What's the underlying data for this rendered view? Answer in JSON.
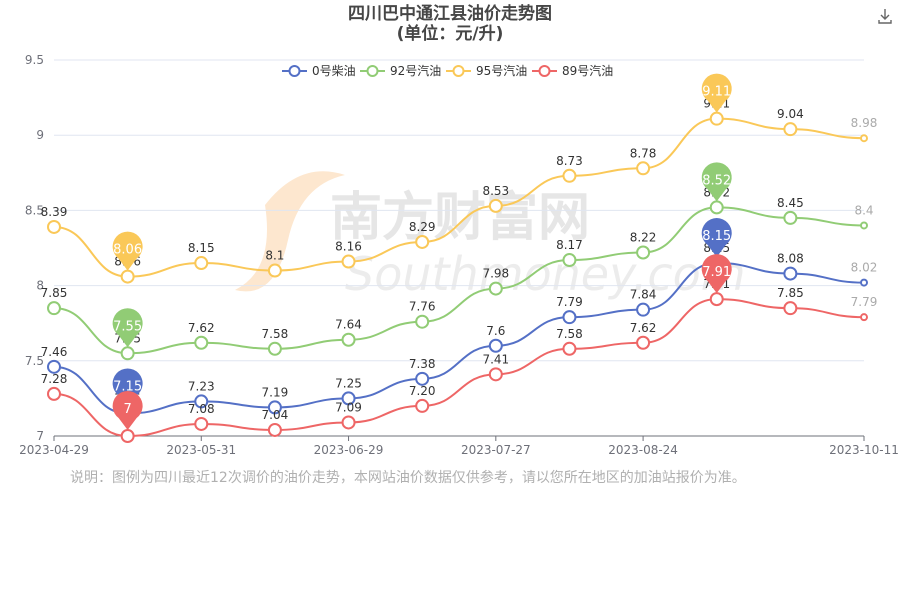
{
  "title_line1": "四川巴中通江县油价走势图",
  "title_line2": "(单位：元/升)",
  "note": "说明：图例为四川最近12次调价的油价走势，本网站油价数据仅供参考，请以您所在地区的加油站报价为准。",
  "watermark": {
    "cn": "南方财富网",
    "en": "Southmoney.com"
  },
  "download_icon": "download-icon",
  "chart_data": {
    "type": "line",
    "x": [
      "2023-04-29",
      "2023-05-16",
      "2023-05-31",
      "2023-06-15",
      "2023-06-29",
      "2023-07-14",
      "2023-07-27",
      "2023-08-10",
      "2023-08-24",
      "2023-09-07",
      "2023-09-21",
      "2023-10-11"
    ],
    "xticks": [
      "2023-04-29",
      "2023-05-31",
      "2023-06-29",
      "2023-07-27",
      "2023-08-24",
      "2023-10-11"
    ],
    "yticks": [
      "7",
      "7.5",
      "8",
      "8.5",
      "9",
      "9.5"
    ],
    "ylim": [
      7,
      9.5
    ],
    "legend_position": "top-center",
    "series": [
      {
        "name": "0号柴油",
        "color": "#5470c6",
        "values": [
          7.46,
          7.15,
          7.23,
          7.19,
          7.25,
          7.38,
          7.6,
          7.79,
          7.84,
          8.15,
          8.08,
          8.02
        ],
        "labels": [
          "7.46",
          "7.15",
          "7.23",
          "7.19",
          "7.25",
          "7.38",
          "7.6",
          "7.79",
          "7.84",
          "8.15",
          "8.08",
          "8.02"
        ],
        "min_index": 1,
        "max_index": 9
      },
      {
        "name": "92号汽油",
        "color": "#91cc75",
        "values": [
          7.85,
          7.55,
          7.62,
          7.58,
          7.64,
          7.76,
          7.98,
          8.17,
          8.22,
          8.52,
          8.45,
          8.4
        ],
        "labels": [
          "7.85",
          "7.55",
          "7.62",
          "7.58",
          "7.64",
          "7.76",
          "7.98",
          "8.17",
          "8.22",
          "8.52",
          "8.45",
          "8.4"
        ],
        "min_index": 1,
        "max_index": 9
      },
      {
        "name": "95号汽油",
        "color": "#fac858",
        "values": [
          8.39,
          8.06,
          8.15,
          8.1,
          8.16,
          8.29,
          8.53,
          8.73,
          8.78,
          9.11,
          9.04,
          8.98
        ],
        "labels": [
          "8.39",
          "8.06",
          "8.15",
          "8.1",
          "8.16",
          "8.29",
          "8.53",
          "8.73",
          "8.78",
          "9.11",
          "9.04",
          "8.98"
        ],
        "min_index": 1,
        "max_index": 9
      },
      {
        "name": "89号汽油",
        "color": "#ee6666",
        "values": [
          7.28,
          7.0,
          7.08,
          7.04,
          7.09,
          7.2,
          7.41,
          7.58,
          7.62,
          7.91,
          7.85,
          7.79
        ],
        "labels": [
          "7.28",
          "7",
          "7.08",
          "7.04",
          "7.09",
          "7.20",
          "7.41",
          "7.58",
          "7.62",
          "7.91",
          "7.85",
          "7.79"
        ],
        "min_index": 1,
        "max_index": 9
      }
    ]
  }
}
